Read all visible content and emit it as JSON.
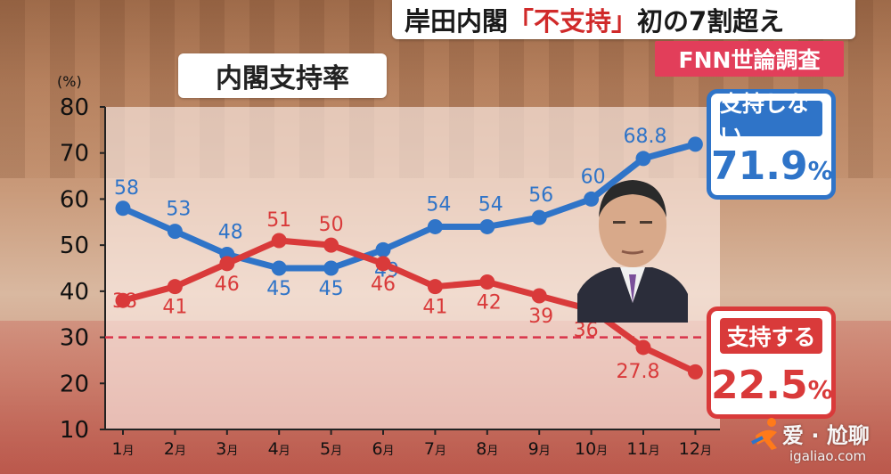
{
  "headline": {
    "prefix": "岸田内閣",
    "highlight": "「不支持」",
    "suffix": "初の7割超え"
  },
  "source_tag": "FNN世論調査",
  "chart_data": {
    "type": "line",
    "title": "内閣支持率",
    "y_unit": "(%)",
    "categories": [
      "1",
      "2",
      "3",
      "4",
      "5",
      "6",
      "7",
      "8",
      "9",
      "10",
      "11",
      "12"
    ],
    "category_suffix": "月",
    "ylim": [
      10,
      80
    ],
    "yticks": [
      10,
      20,
      30,
      40,
      50,
      60,
      70,
      80
    ],
    "reference_line": {
      "value": 30,
      "style": "dashed",
      "color": "#d9334a"
    },
    "series": [
      {
        "name": "支持しない",
        "color": "#2f74c8",
        "values": [
          58,
          53,
          48,
          45,
          45,
          49,
          54,
          54,
          56,
          60,
          68.8,
          71.9
        ],
        "labels": [
          "58",
          "53",
          "48",
          "45",
          "45",
          "49",
          "54",
          "54",
          "56",
          "60",
          "68.8",
          ""
        ]
      },
      {
        "name": "支持する",
        "color": "#d93a3a",
        "values": [
          38,
          41,
          46,
          51,
          50,
          46,
          41,
          42,
          39,
          36,
          27.8,
          22.5
        ],
        "labels": [
          "38",
          "41",
          "46",
          "51",
          "50",
          "46",
          "41",
          "42",
          "39",
          "36",
          "27.8",
          ""
        ]
      }
    ]
  },
  "callouts": {
    "disapprove": {
      "label": "支持しない",
      "value": "71.9",
      "unit": "%"
    },
    "approve": {
      "label": "支持する",
      "value": "22.5",
      "unit": "%"
    }
  },
  "watermark": {
    "name": "爱 · 尬聊",
    "url": "igaliao.com"
  }
}
